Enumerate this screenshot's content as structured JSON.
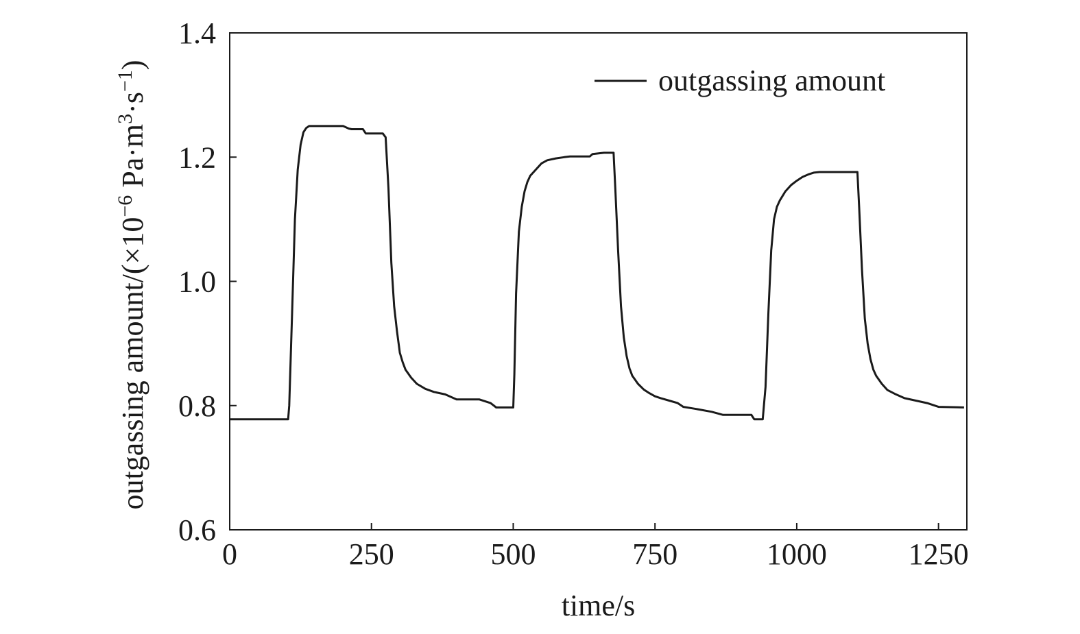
{
  "chart_data": {
    "type": "line",
    "title": "",
    "xlabel": "time/s",
    "ylabel": {
      "prefix": "outgassing amount/(×10",
      "exp1": "−6",
      "mid": " Pa·m",
      "exp2": "3",
      "mid2": "·s",
      "exp3": "−1",
      "suffix": ")"
    },
    "xlim": [
      0,
      1300
    ],
    "ylim": [
      0.6,
      1.4
    ],
    "xticks": [
      0,
      250,
      500,
      750,
      1000,
      1250
    ],
    "xtick_labels": [
      "0",
      "250",
      "500",
      "750",
      "1000",
      "1250"
    ],
    "yticks": [
      0.6,
      0.8,
      1.0,
      1.2,
      1.4
    ],
    "ytick_labels": [
      "0.6",
      "0.8",
      "1.0",
      "1.2",
      "1.4"
    ],
    "grid": false,
    "legend": {
      "position": "top-right",
      "entries": [
        "outgassing amount"
      ]
    },
    "series": [
      {
        "name": "outgassing amount",
        "color": "#1a1a1a",
        "x": [
          0,
          103,
          105,
          110,
          115,
          120,
          125,
          130,
          135,
          140,
          145,
          150,
          160,
          200,
          210,
          215,
          235,
          240,
          270,
          275,
          280,
          285,
          290,
          295,
          300,
          305,
          310,
          320,
          330,
          345,
          360,
          380,
          400,
          440,
          460,
          470,
          500,
          502,
          505,
          510,
          515,
          520,
          525,
          530,
          540,
          550,
          560,
          575,
          590,
          600,
          635,
          640,
          660,
          677,
          680,
          685,
          690,
          695,
          700,
          705,
          710,
          720,
          730,
          740,
          750,
          760,
          775,
          790,
          800,
          820,
          850,
          870,
          920,
          925,
          940,
          945,
          950,
          955,
          960,
          965,
          970,
          980,
          990,
          1000,
          1010,
          1020,
          1030,
          1040,
          1060,
          1100,
          1107,
          1110,
          1115,
          1120,
          1125,
          1130,
          1135,
          1140,
          1150,
          1160,
          1175,
          1190,
          1210,
          1230,
          1250,
          1295
        ],
        "y": [
          0.778,
          0.778,
          0.8,
          0.95,
          1.1,
          1.18,
          1.22,
          1.24,
          1.247,
          1.25,
          1.25,
          1.25,
          1.25,
          1.25,
          1.246,
          1.245,
          1.245,
          1.238,
          1.238,
          1.232,
          1.15,
          1.03,
          0.96,
          0.92,
          0.885,
          0.87,
          0.858,
          0.845,
          0.835,
          0.827,
          0.822,
          0.818,
          0.81,
          0.81,
          0.804,
          0.797,
          0.797,
          0.85,
          0.98,
          1.08,
          1.12,
          1.145,
          1.16,
          1.17,
          1.18,
          1.19,
          1.195,
          1.198,
          1.2,
          1.201,
          1.201,
          1.205,
          1.207,
          1.207,
          1.15,
          1.05,
          0.96,
          0.91,
          0.88,
          0.86,
          0.848,
          0.835,
          0.826,
          0.82,
          0.815,
          0.812,
          0.808,
          0.804,
          0.798,
          0.795,
          0.79,
          0.785,
          0.785,
          0.778,
          0.778,
          0.83,
          0.95,
          1.05,
          1.1,
          1.12,
          1.13,
          1.145,
          1.155,
          1.162,
          1.168,
          1.172,
          1.175,
          1.176,
          1.176,
          1.176,
          1.176,
          1.12,
          1.02,
          0.94,
          0.9,
          0.875,
          0.858,
          0.848,
          0.835,
          0.825,
          0.818,
          0.812,
          0.808,
          0.804,
          0.798,
          0.797
        ]
      }
    ]
  }
}
